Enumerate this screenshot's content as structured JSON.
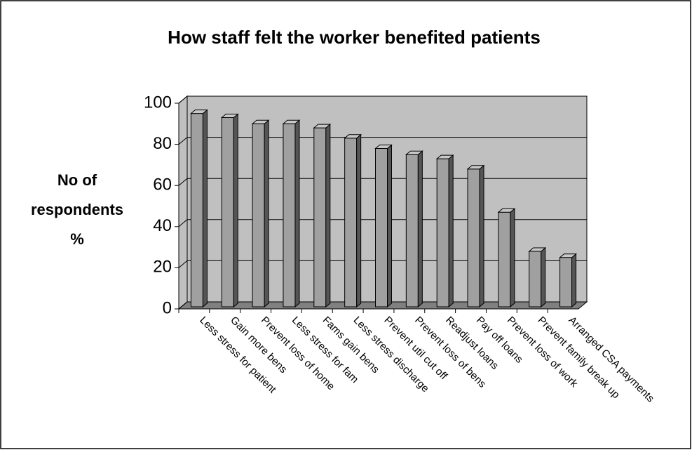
{
  "chart_data": {
    "type": "bar3d",
    "title": "How staff felt the worker benefited patients",
    "y_label": [
      "No of",
      "respondents",
      "%"
    ],
    "categories": [
      "Less stress for patient",
      "Gain more bens",
      "Prevent loss of home",
      "Less stress for fam",
      "Fams gain bens",
      "Less stress discharge",
      "Prevent util cut off",
      "Prevent loss of bens",
      "Readjust loans",
      "Pay off loans",
      "Prevent loss of work",
      "Prevent family break up",
      "Arranged CSA payments"
    ],
    "values": [
      95,
      93,
      90,
      90,
      88,
      83,
      78,
      75,
      73,
      68,
      47,
      28,
      25
    ],
    "color": "#a0a0a0",
    "ylim": [
      0,
      100
    ],
    "yticks": [
      0,
      20,
      40,
      60,
      80,
      100
    ],
    "grid": true
  }
}
